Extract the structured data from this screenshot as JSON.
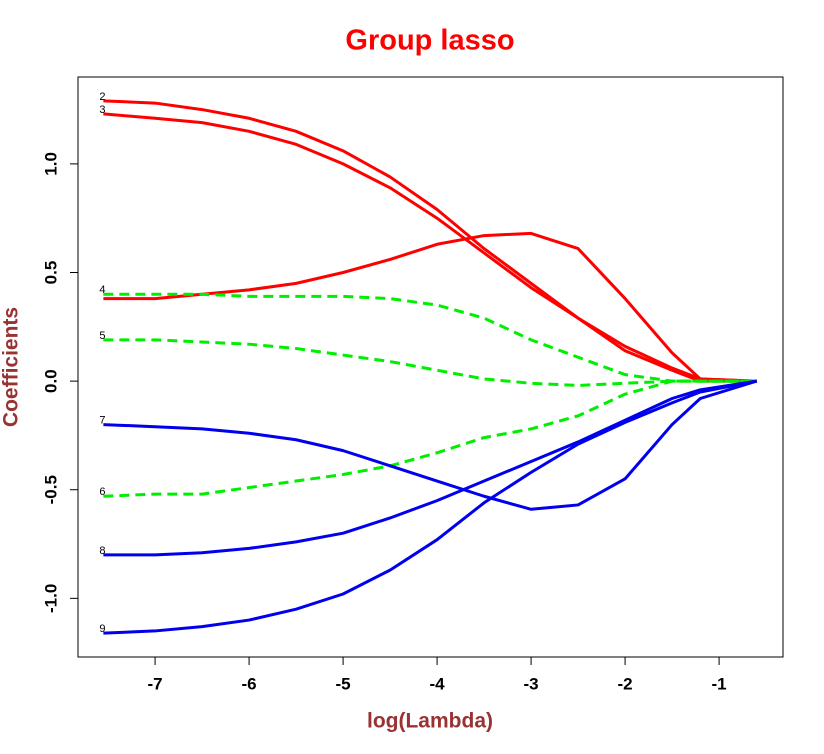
{
  "chart_data": {
    "type": "line",
    "title": "Group lasso",
    "x_label": "log(Lambda)",
    "y_label": "Coefficients",
    "x": [
      -7.55,
      -7,
      -6.5,
      -6,
      -5.5,
      -5,
      -4.5,
      -4,
      -3.5,
      -3,
      -2.5,
      -2,
      -1.5,
      -1.2,
      -0.6
    ],
    "xlim": [
      -7.82,
      -0.32
    ],
    "ylim": [
      -1.27,
      1.4
    ],
    "xticks": [
      -7,
      -6,
      -5,
      -4,
      -3,
      -2,
      -1
    ],
    "yticks": [
      -1.0,
      -0.5,
      0.0,
      0.5,
      1.0
    ],
    "series": [
      {
        "label": "2",
        "color": "#ff0000",
        "dash": false,
        "values": [
          1.29,
          1.28,
          1.25,
          1.21,
          1.15,
          1.06,
          0.94,
          0.79,
          0.61,
          0.45,
          0.29,
          0.14,
          0.05,
          0.0,
          0.0
        ]
      },
      {
        "label": "3",
        "color": "#ff0000",
        "dash": false,
        "values": [
          1.23,
          1.21,
          1.19,
          1.15,
          1.09,
          1.0,
          0.89,
          0.75,
          0.59,
          0.43,
          0.29,
          0.16,
          0.06,
          0.01,
          0.0
        ]
      },
      {
        "color": "#ff0000",
        "dash": false,
        "values": [
          0.38,
          0.38,
          0.4,
          0.42,
          0.45,
          0.5,
          0.56,
          0.63,
          0.67,
          0.68,
          0.61,
          0.38,
          0.13,
          0.01,
          0.0
        ]
      },
      {
        "label": "4",
        "color": "#00ee00",
        "dash": true,
        "values": [
          0.4,
          0.4,
          0.4,
          0.39,
          0.39,
          0.39,
          0.38,
          0.35,
          0.29,
          0.19,
          0.11,
          0.03,
          0.0,
          0.0,
          0.0
        ]
      },
      {
        "label": "5",
        "color": "#00ee00",
        "dash": true,
        "values": [
          0.19,
          0.19,
          0.18,
          0.17,
          0.15,
          0.12,
          0.09,
          0.05,
          0.01,
          -0.01,
          -0.02,
          -0.01,
          0.0,
          0.0,
          0.0
        ]
      },
      {
        "label": "6",
        "color": "#00ee00",
        "dash": true,
        "values": [
          -0.53,
          -0.52,
          -0.52,
          -0.49,
          -0.46,
          -0.43,
          -0.39,
          -0.33,
          -0.26,
          -0.22,
          -0.16,
          -0.06,
          0.0,
          0.0,
          0.0
        ]
      },
      {
        "label": "7",
        "color": "#0000ee",
        "dash": false,
        "values": [
          -0.2,
          -0.21,
          -0.22,
          -0.24,
          -0.27,
          -0.32,
          -0.39,
          -0.46,
          -0.53,
          -0.59,
          -0.57,
          -0.45,
          -0.2,
          -0.08,
          0.0
        ]
      },
      {
        "label": "8",
        "color": "#0000ee",
        "dash": false,
        "values": [
          -0.8,
          -0.8,
          -0.79,
          -0.77,
          -0.74,
          -0.7,
          -0.63,
          -0.55,
          -0.46,
          -0.37,
          -0.28,
          -0.18,
          -0.08,
          -0.04,
          0.0
        ]
      },
      {
        "label": "9",
        "color": "#0000ee",
        "dash": false,
        "values": [
          -1.16,
          -1.15,
          -1.13,
          -1.1,
          -1.05,
          -0.98,
          -0.87,
          -0.73,
          -0.56,
          -0.42,
          -0.29,
          -0.19,
          -0.1,
          -0.05,
          0.0
        ]
      }
    ]
  }
}
